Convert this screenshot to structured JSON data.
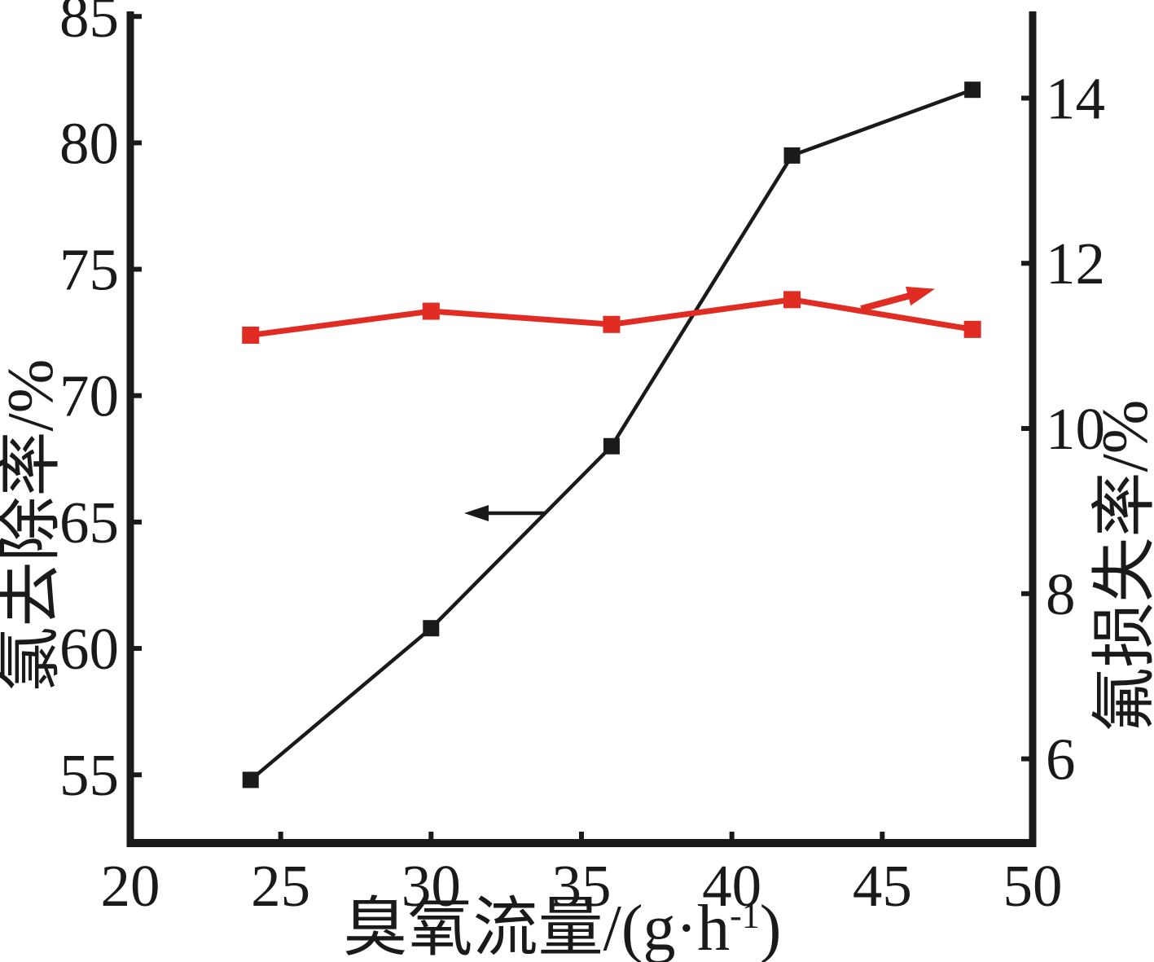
{
  "chart_data": {
    "type": "line",
    "title": "",
    "xlabel": "臭氧流量/(g·h⁻¹)",
    "xlabel_parts": {
      "prefix": "臭氧流量/(g·h",
      "sup": "-1",
      "suffix": ")"
    },
    "ylabel_left": "氯去除率/%",
    "ylabel_right": "氟损失率/%",
    "x": [
      24,
      30,
      36,
      42,
      48
    ],
    "series": [
      {
        "name": "氯去除率",
        "axis": "left",
        "color": "#1a1a1a",
        "marker": "square",
        "values": [
          54.8,
          60.8,
          68.0,
          79.5,
          82.1
        ]
      },
      {
        "name": "氟损失率",
        "axis": "right",
        "color": "#e02c22",
        "marker": "square",
        "values": [
          11.13,
          11.42,
          11.26,
          11.56,
          11.2
        ]
      }
    ],
    "x_ticks": [
      20,
      25,
      30,
      35,
      40,
      45,
      50
    ],
    "y_left_ticks": [
      55,
      60,
      65,
      70,
      75,
      80,
      85
    ],
    "y_right_ticks": [
      6,
      8,
      10,
      12,
      14
    ],
    "x_range": [
      20,
      50
    ],
    "y_left_range": [
      52.3,
      85.2
    ],
    "y_right_range": [
      4.98,
      15.05
    ],
    "grid": false,
    "legend": "none",
    "annotations": [
      {
        "type": "arrow",
        "axis": "left",
        "color": "#1a1a1a",
        "from": [
          33.8,
          65.35
        ],
        "to": [
          31.1,
          65.35
        ],
        "meaning": "black curve reads left axis"
      },
      {
        "type": "arrow",
        "axis": "right",
        "color": "#e02c22",
        "from": [
          44.3,
          11.45
        ],
        "to": [
          46.75,
          11.69
        ],
        "meaning": "red curve reads right axis"
      }
    ]
  }
}
